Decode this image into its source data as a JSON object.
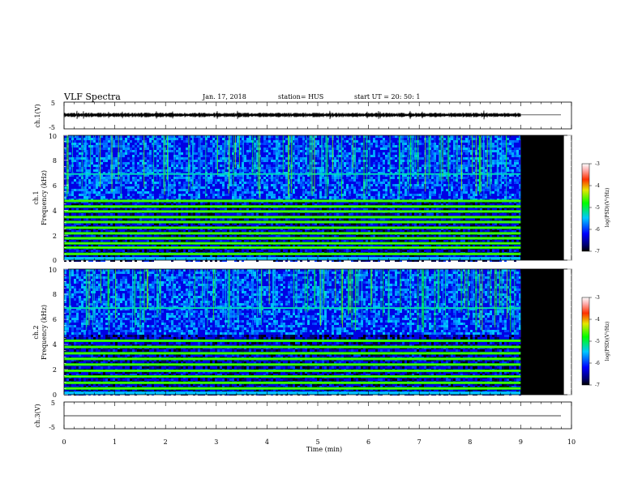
{
  "header": {
    "title": "VLF Spectra",
    "date": "Jan. 17, 2018",
    "station": "station= HUS",
    "start": "start UT = 20: 50: 1"
  },
  "chart_data": [
    {
      "type": "line",
      "name": "ch1-waveform",
      "ylabel": "ch.1(V)",
      "yticks": [
        "5",
        "-5"
      ],
      "ylim": [
        -5,
        5
      ],
      "xlim": [
        0,
        10
      ],
      "description_level": 0.2,
      "data_end_min": 9.0,
      "flat_after_data_end": true
    },
    {
      "type": "heatmap",
      "name": "ch1-spectrogram",
      "ylabel_top": "ch.1",
      "ylabel": "Frequency (kHz)",
      "ylim": [
        0,
        10
      ],
      "yticks": [
        "0",
        "2",
        "4",
        "6",
        "8",
        "10"
      ],
      "xlim": [
        0,
        10
      ],
      "data_end_min": 9.0,
      "blank_end_min": 9.85,
      "bands_khz": [
        0.5,
        1.0,
        1.35,
        1.75,
        2.15,
        2.6,
        3.05,
        3.45,
        3.9,
        4.3,
        4.75
      ],
      "band_level": -4.8,
      "background_level": -6.3,
      "upper_line_khz": 6.9,
      "colorbar": {
        "label": "log(PSD)(V²/Hz)",
        "ticks": [
          "-3",
          "-4",
          "-5",
          "-6",
          "-7"
        ],
        "range": [
          -7,
          -3
        ]
      }
    },
    {
      "type": "heatmap",
      "name": "ch2-spectrogram",
      "ylabel_top": "ch.2",
      "ylabel": "Frequency (kHz)",
      "ylim": [
        0,
        10
      ],
      "yticks": [
        "0",
        "2",
        "4",
        "6",
        "8",
        "10"
      ],
      "xlim": [
        0,
        10
      ],
      "data_end_min": 9.0,
      "blank_end_min": 9.85,
      "bands_khz": [
        0.5,
        0.95,
        1.45,
        1.9,
        2.4,
        2.85,
        3.3,
        3.8,
        4.3
      ],
      "band_level": -4.8,
      "background_level": -6.3,
      "upper_line_khz": 6.9,
      "colorbar": {
        "label": "log(PSD)(V²/Hz)",
        "ticks": [
          "-3",
          "-4",
          "-5",
          "-6",
          "-7"
        ],
        "range": [
          -7,
          -3
        ]
      }
    },
    {
      "type": "line",
      "name": "ch3-waveform",
      "ylabel": "ch.3(V)",
      "yticks": [
        "5",
        "-5"
      ],
      "ylim": [
        -5,
        5
      ],
      "xlim": [
        0,
        10
      ],
      "level": 0,
      "xlabel": "Time (min)",
      "xticks": [
        "0",
        "1",
        "2",
        "3",
        "4",
        "5",
        "6",
        "7",
        "8",
        "9",
        "10"
      ]
    }
  ]
}
